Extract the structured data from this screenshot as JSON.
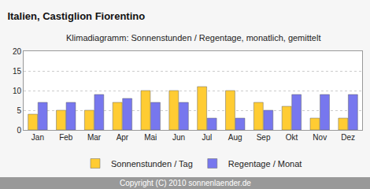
{
  "chart_data": {
    "type": "bar",
    "title": "Italien, Castiglion Fiorentino",
    "subtitle": "Klimadiagramm: Sonnenstunden / Regentage, monatlich, gemittelt",
    "footer": "Copyright (C) 2010 sonnenlaender.de",
    "categories": [
      "Jan",
      "Feb",
      "Mar",
      "Apr",
      "Mai",
      "Jun",
      "Jul",
      "Aug",
      "Sep",
      "Okt",
      "Nov",
      "Dez"
    ],
    "series": [
      {
        "name": "Sonnenstunden / Tag",
        "color": "#ffcc33",
        "values": [
          4,
          5,
          5,
          7,
          10,
          10,
          11,
          10,
          7,
          6,
          3,
          3
        ]
      },
      {
        "name": "Regentage / Monat",
        "color": "#7777ee",
        "values": [
          7,
          7,
          9,
          8,
          7,
          7,
          3,
          3,
          5,
          9,
          9,
          9
        ]
      }
    ],
    "ylim": [
      0,
      20
    ],
    "yticks": [
      0,
      5,
      10,
      15,
      20
    ],
    "grid": true,
    "legend": "bottom"
  }
}
